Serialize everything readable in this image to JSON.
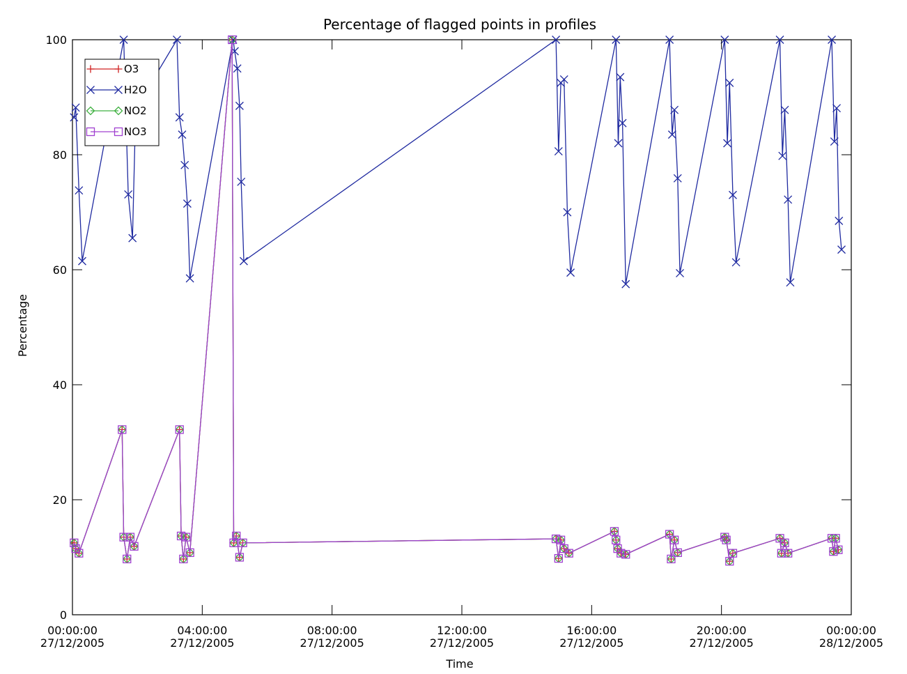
{
  "chart_data": {
    "type": "line",
    "title": "Percentage of flagged points in profiles",
    "xlabel": "Time",
    "ylabel": "Percentage",
    "x_unit": "hours after 00:00:00 27/12/2005",
    "xlim": [
      0,
      24
    ],
    "ylim": [
      0,
      100
    ],
    "grid": false,
    "legend_position": "top-left",
    "x_ticks": [
      {
        "value": 0,
        "time": "00:00:00",
        "date": "27/12/2005"
      },
      {
        "value": 4,
        "time": "04:00:00",
        "date": "27/12/2005"
      },
      {
        "value": 8,
        "time": "08:00:00",
        "date": "27/12/2005"
      },
      {
        "value": 12,
        "time": "12:00:00",
        "date": "27/12/2005"
      },
      {
        "value": 16,
        "time": "16:00:00",
        "date": "27/12/2005"
      },
      {
        "value": 20,
        "time": "20:00:00",
        "date": "27/12/2005"
      },
      {
        "value": 24,
        "time": "00:00:00",
        "date": "28/12/2005"
      }
    ],
    "y_ticks": [
      0,
      20,
      40,
      60,
      80,
      100
    ],
    "series": [
      {
        "name": "O3",
        "color": "#d02020",
        "marker": "plus",
        "x": [
          0.05,
          0.1,
          0.2,
          1.53,
          1.58,
          1.68,
          1.78,
          1.9,
          3.3,
          3.35,
          3.42,
          3.5,
          3.62,
          4.92,
          4.97,
          5.05,
          5.15,
          5.25,
          14.9,
          14.98,
          15.05,
          15.15,
          15.3,
          16.7,
          16.75,
          16.8,
          16.9,
          17.05,
          18.4,
          18.45,
          18.55,
          18.65,
          20.1,
          20.15,
          20.25,
          20.35,
          21.8,
          21.85,
          21.95,
          22.05,
          23.4,
          23.45,
          23.52,
          23.6
        ],
        "y": [
          12.5,
          11.5,
          10.7,
          32.2,
          13.5,
          9.7,
          13.5,
          11.9,
          32.2,
          13.7,
          9.7,
          13.5,
          10.8,
          100,
          12.5,
          13.7,
          10.0,
          12.5,
          13.2,
          9.8,
          13.0,
          11.5,
          10.7,
          14.5,
          13.0,
          11.5,
          10.7,
          10.5,
          14.0,
          9.7,
          13.0,
          10.8,
          13.5,
          13.0,
          9.3,
          10.7,
          13.3,
          10.7,
          12.5,
          10.7,
          13.3,
          11.0,
          13.3,
          11.3
        ]
      },
      {
        "name": "H2O",
        "color": "#1f2aa0",
        "marker": "x",
        "x": [
          0.05,
          0.1,
          0.2,
          0.3,
          1.58,
          1.72,
          1.85,
          1.95,
          3.22,
          3.3,
          3.38,
          3.46,
          3.54,
          3.62,
          4.95,
          5.0,
          5.08,
          5.15,
          5.2,
          5.28,
          14.9,
          14.98,
          15.05,
          15.15,
          15.25,
          15.35,
          16.75,
          16.82,
          16.88,
          16.95,
          17.05,
          18.4,
          18.48,
          18.55,
          18.65,
          18.72,
          20.1,
          20.18,
          20.25,
          20.35,
          20.45,
          21.8,
          21.88,
          21.95,
          22.05,
          22.12,
          23.4,
          23.48,
          23.55,
          23.62,
          23.7
        ],
        "y": [
          86.5,
          88.2,
          73.8,
          61.5,
          100,
          73.1,
          65.5,
          88.0,
          100,
          86.5,
          83.5,
          78.2,
          71.5,
          58.5,
          100,
          98.0,
          95.0,
          88.5,
          75.3,
          61.5,
          100,
          80.6,
          92.5,
          93.1,
          70.0,
          59.5,
          100,
          82.0,
          93.5,
          85.5,
          57.5,
          100,
          83.5,
          87.8,
          75.9,
          59.4,
          100,
          82.0,
          92.5,
          73.0,
          61.3,
          100,
          79.8,
          87.8,
          72.2,
          57.8,
          100,
          82.3,
          88.1,
          68.5,
          63.5
        ]
      },
      {
        "name": "NO2",
        "color": "#3fb040",
        "marker": "diamond",
        "x": [
          0.05,
          0.1,
          0.2,
          1.53,
          1.58,
          1.68,
          1.78,
          1.9,
          3.3,
          3.35,
          3.42,
          3.5,
          3.62,
          4.92,
          4.97,
          5.05,
          5.15,
          5.25,
          14.9,
          14.98,
          15.05,
          15.15,
          15.3,
          16.7,
          16.75,
          16.8,
          16.9,
          17.05,
          18.4,
          18.45,
          18.55,
          18.65,
          20.1,
          20.15,
          20.25,
          20.35,
          21.8,
          21.85,
          21.95,
          22.05,
          23.4,
          23.45,
          23.52,
          23.6
        ],
        "y": [
          12.5,
          11.5,
          10.7,
          32.2,
          13.5,
          9.7,
          13.5,
          11.9,
          32.2,
          13.7,
          9.7,
          13.5,
          10.8,
          100,
          12.5,
          13.7,
          10.0,
          12.5,
          13.2,
          9.8,
          13.0,
          11.5,
          10.7,
          14.5,
          13.0,
          11.5,
          10.7,
          10.5,
          14.0,
          9.7,
          13.0,
          10.8,
          13.5,
          13.0,
          9.3,
          10.7,
          13.3,
          10.7,
          12.5,
          10.7,
          13.3,
          11.0,
          13.3,
          11.3
        ]
      },
      {
        "name": "NO3",
        "color": "#a040d0",
        "marker": "square",
        "x": [
          0.05,
          0.1,
          0.2,
          1.53,
          1.58,
          1.68,
          1.78,
          1.9,
          3.3,
          3.35,
          3.42,
          3.5,
          3.62,
          4.92,
          4.97,
          5.05,
          5.15,
          5.25,
          14.9,
          14.98,
          15.05,
          15.15,
          15.3,
          16.7,
          16.75,
          16.8,
          16.9,
          17.05,
          18.4,
          18.45,
          18.55,
          18.65,
          20.1,
          20.15,
          20.25,
          20.35,
          21.8,
          21.85,
          21.95,
          22.05,
          23.4,
          23.45,
          23.52,
          23.6
        ],
        "y": [
          12.5,
          11.5,
          10.7,
          32.2,
          13.5,
          9.7,
          13.5,
          11.9,
          32.2,
          13.7,
          9.7,
          13.5,
          10.8,
          100,
          12.5,
          13.7,
          10.0,
          12.5,
          13.2,
          9.8,
          13.0,
          11.5,
          10.7,
          14.5,
          13.0,
          11.5,
          10.7,
          10.5,
          14.0,
          9.7,
          13.0,
          10.8,
          13.5,
          13.0,
          9.3,
          10.7,
          13.3,
          10.7,
          12.5,
          10.7,
          13.3,
          11.0,
          13.3,
          11.3
        ]
      }
    ]
  }
}
